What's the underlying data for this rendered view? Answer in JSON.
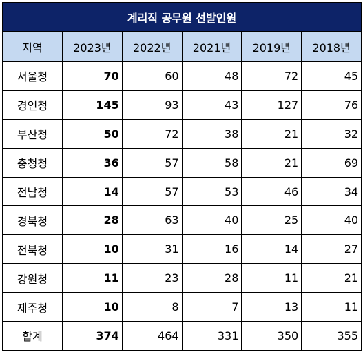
{
  "title": "계리직 공무원 선발인원",
  "headers": [
    "지역",
    "2023년",
    "2022년",
    "2021년",
    "2019년",
    "2018년"
  ],
  "rows": [
    {
      "region": "서울청",
      "values": [
        "70",
        "60",
        "48",
        "72",
        "45"
      ]
    },
    {
      "region": "경인청",
      "values": [
        "145",
        "93",
        "43",
        "127",
        "76"
      ]
    },
    {
      "region": "부산청",
      "values": [
        "50",
        "72",
        "38",
        "21",
        "32"
      ]
    },
    {
      "region": "충청청",
      "values": [
        "36",
        "57",
        "58",
        "21",
        "69"
      ]
    },
    {
      "region": "전남청",
      "values": [
        "14",
        "57",
        "53",
        "46",
        "34"
      ]
    },
    {
      "region": "경북청",
      "values": [
        "28",
        "63",
        "40",
        "25",
        "40"
      ]
    },
    {
      "region": "전북청",
      "values": [
        "10",
        "31",
        "16",
        "14",
        "27"
      ]
    },
    {
      "region": "강원청",
      "values": [
        "11",
        "23",
        "28",
        "11",
        "21"
      ]
    },
    {
      "region": "제주청",
      "values": [
        "10",
        "8",
        "7",
        "13",
        "11"
      ]
    },
    {
      "region": "합계",
      "values": [
        "374",
        "464",
        "331",
        "350",
        "355"
      ]
    }
  ],
  "colors": {
    "title_background": "#0d2368",
    "title_text": "#ffffff",
    "header_background": "#c5d9f1",
    "border": "#000000"
  }
}
